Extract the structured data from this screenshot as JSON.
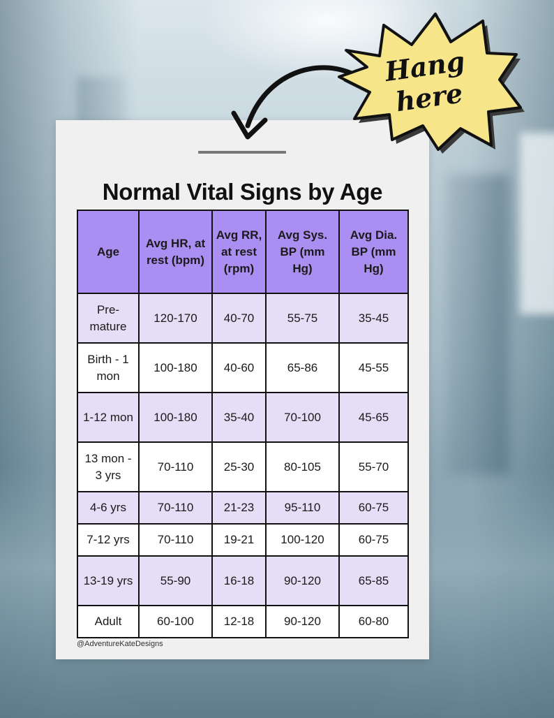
{
  "callout": {
    "text": "Hang here",
    "fill_color": "#f7e58a",
    "icon": "curved-arrow-icon"
  },
  "poster": {
    "title": "Normal Vital Signs by Age",
    "header_color": "#aa8ef2",
    "stripe_color": "#e6ddf6",
    "footer": "@AdventureKateDesigns"
  },
  "table": {
    "headers": [
      "Age",
      "Avg HR, at rest (bpm)",
      "Avg RR, at rest (rpm)",
      "Avg Sys. BP (mm Hg)",
      "Avg Dia. BP (mm Hg)"
    ],
    "rows": [
      {
        "age": "Pre-mature",
        "hr": "120-170",
        "rr": "40-70",
        "sys": "55-75",
        "dia": "35-45"
      },
      {
        "age": "Birth - 1 mon",
        "hr": "100-180",
        "rr": "40-60",
        "sys": "65-86",
        "dia": "45-55"
      },
      {
        "age": "1-12 mon",
        "hr": "100-180",
        "rr": "35-40",
        "sys": "70-100",
        "dia": "45-65"
      },
      {
        "age": "13 mon - 3 yrs",
        "hr": "70-110",
        "rr": "25-30",
        "sys": "80-105",
        "dia": "55-70"
      },
      {
        "age": "4-6 yrs",
        "hr": "70-110",
        "rr": "21-23",
        "sys": "95-110",
        "dia": "60-75"
      },
      {
        "age": "7-12 yrs",
        "hr": "70-110",
        "rr": "19-21",
        "sys": "100-120",
        "dia": "60-75"
      },
      {
        "age": "13-19 yrs",
        "hr": "55-90",
        "rr": "16-18",
        "sys": "90-120",
        "dia": "65-85"
      },
      {
        "age": "Adult",
        "hr": "60-100",
        "rr": "12-18",
        "sys": "90-120",
        "dia": "60-80"
      }
    ]
  }
}
